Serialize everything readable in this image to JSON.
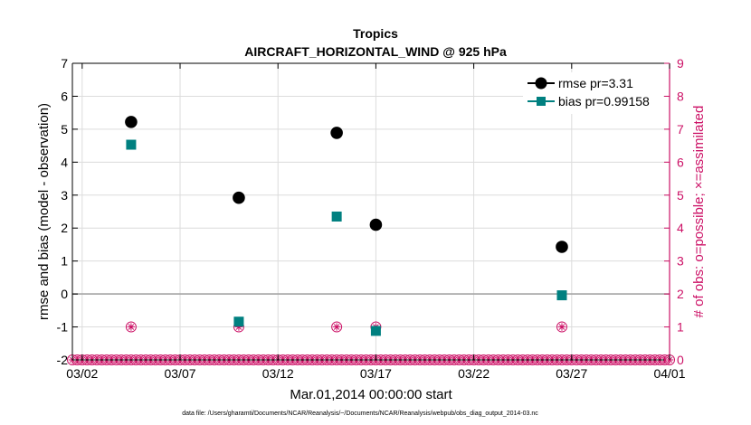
{
  "chart_data": {
    "type": "scatter",
    "title": "Tropics",
    "subtitle": "AIRCRAFT_HORIZONTAL_WIND @ 925 hPa",
    "xlabel": "Mar.01,2014 00:00:00 start",
    "ylabel": "rmse and bias (model - observation)",
    "y2label": "# of obs: o=possible; ×=assimilated",
    "footnote": "data file: /Users/gharamti/Documents/NCAR/Reanalysis/~/Documents/NCAR/Reanalysis/webpub/obs_diag_output_2014-03.nc",
    "xlim": [
      0.5,
      31.0
    ],
    "ylim": [
      -2,
      7
    ],
    "y2lim": [
      0,
      9
    ],
    "x_ticks": [
      1.0,
      6.0,
      11.0,
      16.0,
      21.0,
      26.0,
      31.0
    ],
    "x_tick_labels": [
      "03/02",
      "03/07",
      "03/12",
      "03/17",
      "03/22",
      "03/27",
      "04/01"
    ],
    "y_ticks": [
      -2,
      -1,
      0,
      1,
      2,
      3,
      4,
      5,
      6,
      7
    ],
    "y_tick_labels": [
      "-2",
      "-1",
      "0",
      "1",
      "2",
      "3",
      "4",
      "5",
      "6",
      "7"
    ],
    "y2_ticks": [
      0,
      1,
      2,
      3,
      4,
      5,
      6,
      7,
      8,
      9
    ],
    "y2_tick_labels": [
      "0",
      "1",
      "2",
      "3",
      "4",
      "5",
      "6",
      "7",
      "8",
      "9"
    ],
    "grid": true,
    "legend_position": "top-right",
    "series": [
      {
        "name": "rmse",
        "legend_label": "rmse pr=3.31",
        "color": "#000000",
        "marker": "circle",
        "x": [
          3.5,
          9.0,
          14.0,
          16.0,
          25.5
        ],
        "y": [
          5.22,
          2.92,
          4.89,
          2.1,
          1.43
        ]
      },
      {
        "name": "bias",
        "legend_label": "bias pr=0.99158",
        "color": "#008080",
        "marker": "square",
        "x": [
          3.5,
          9.0,
          14.0,
          16.0,
          25.5
        ],
        "y": [
          4.53,
          -0.84,
          2.35,
          -1.12,
          -0.04
        ]
      }
    ],
    "obs_counts": {
      "name": "# of obs",
      "color": "#cc1166",
      "x_obs1": [
        3.5,
        9.0,
        14.0,
        16.0,
        25.5
      ],
      "count_obs1": 1,
      "x_obs0_start": 0.5,
      "x_obs0_end": 31.0,
      "x_obs0_step": 0.25,
      "count_obs0": 0
    }
  }
}
